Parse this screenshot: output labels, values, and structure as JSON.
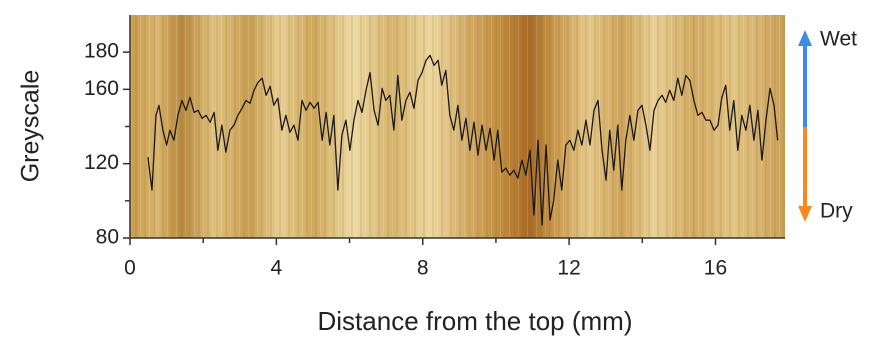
{
  "chart_data": {
    "type": "line",
    "xlabel": "Distance from the top (mm)",
    "ylabel": "Greyscale",
    "x": [
      0.49,
      0.6,
      0.71,
      0.79,
      0.9,
      1.0,
      1.09,
      1.2,
      1.31,
      1.42,
      1.53,
      1.64,
      1.75,
      1.86,
      1.97,
      2.08,
      2.19,
      2.3,
      2.4,
      2.51,
      2.62,
      2.73,
      2.84,
      2.95,
      3.06,
      3.17,
      3.28,
      3.39,
      3.5,
      3.61,
      3.72,
      3.83,
      3.93,
      4.04,
      4.15,
      4.26,
      4.37,
      4.48,
      4.59,
      4.7,
      4.81,
      4.92,
      5.03,
      5.14,
      5.25,
      5.36,
      5.46,
      5.57,
      5.68,
      5.79,
      5.9,
      6.01,
      6.12,
      6.23,
      6.34,
      6.45,
      6.56,
      6.67,
      6.78,
      6.89,
      6.99,
      7.1,
      7.21,
      7.32,
      7.43,
      7.54,
      7.65,
      7.76,
      7.87,
      7.98,
      8.09,
      8.2,
      8.31,
      8.42,
      8.52,
      8.63,
      8.74,
      8.85,
      8.96,
      9.07,
      9.18,
      9.29,
      9.4,
      9.51,
      9.62,
      9.73,
      9.84,
      9.95,
      10.05,
      10.16,
      10.27,
      10.38,
      10.49,
      10.6,
      10.71,
      10.82,
      10.93,
      11.04,
      11.15,
      11.26,
      11.37,
      11.48,
      11.58,
      11.69,
      11.8,
      11.91,
      12.02,
      12.13,
      12.24,
      12.35,
      12.46,
      12.57,
      12.68,
      12.79,
      12.9,
      13.01,
      13.11,
      13.22,
      13.33,
      13.44,
      13.55,
      13.66,
      13.77,
      13.88,
      13.99,
      14.1,
      14.21,
      14.32,
      14.43,
      14.54,
      14.64,
      14.75,
      14.86,
      14.97,
      15.08,
      15.19,
      15.3,
      15.41,
      15.52,
      15.63,
      15.74,
      15.85,
      15.96,
      16.07,
      16.17,
      16.28,
      16.39,
      16.5,
      16.61,
      16.72,
      16.83,
      16.94,
      17.05,
      17.16,
      17.27,
      17.38,
      17.49,
      17.6,
      17.7
    ],
    "values": [
      123.5,
      105.8,
      146,
      151.4,
      138,
      130,
      138,
      132.6,
      146,
      154,
      148.7,
      155.7,
      147.6,
      148.7,
      144.4,
      146,
      142.3,
      147.6,
      127.2,
      140.7,
      126.2,
      138,
      140.7,
      146,
      149.8,
      154,
      152.5,
      159.5,
      163.8,
      166,
      156.8,
      161.6,
      151.4,
      155.2,
      138,
      146,
      136.9,
      140.7,
      132.6,
      154,
      148.7,
      153,
      149.8,
      153,
      132.6,
      147.6,
      130,
      146,
      105.8,
      135.3,
      143.4,
      127.2,
      143.4,
      154,
      147.6,
      159.5,
      169,
      148.7,
      140.7,
      160.5,
      154,
      156.8,
      138,
      167.5,
      143.4,
      154,
      158.4,
      149.8,
      164.8,
      169,
      175.6,
      178.3,
      172.9,
      175.6,
      162.2,
      170.2,
      146,
      138,
      151.4,
      132.6,
      144.4,
      127.2,
      142.3,
      124.6,
      140.7,
      127.2,
      139,
      121.9,
      138,
      115.4,
      117.6,
      113.8,
      116.5,
      112.2,
      121.9,
      113.8,
      127.2,
      92.3,
      132.6,
      87,
      130,
      89.7,
      100.4,
      121.9,
      105.8,
      130,
      132.6,
      127.2,
      138,
      130,
      143.4,
      130,
      148.7,
      154,
      127.2,
      111.1,
      138,
      116.5,
      140.7,
      105.8,
      132.6,
      146,
      132.6,
      148.7,
      151.4,
      140.7,
      127.2,
      148.7,
      154,
      156.8,
      153,
      159.5,
      154,
      166,
      156.8,
      167.5,
      164.8,
      154,
      146,
      147.6,
      143.4,
      143.4,
      138,
      140.7,
      155.2,
      162.2,
      138,
      154,
      127.2,
      146,
      138,
      151.4,
      132.6,
      148.7,
      121.9,
      143.4,
      160.5,
      151.4,
      132.6
    ],
    "color": "#1a1a1a",
    "xlim": [
      0,
      17.9
    ],
    "xticks": [
      0,
      4,
      8,
      12,
      16
    ],
    "xminor_ticks": [
      2,
      6,
      10,
      14
    ],
    "ylim": [
      80,
      200
    ],
    "yticks": [
      80,
      120,
      160,
      180
    ],
    "yminor_ticks": [
      100,
      140
    ],
    "annotations": {
      "wet": "Wet",
      "dry": "Dry",
      "wet_color": "#3a8ee8",
      "dry_color": "#f5891f"
    }
  }
}
